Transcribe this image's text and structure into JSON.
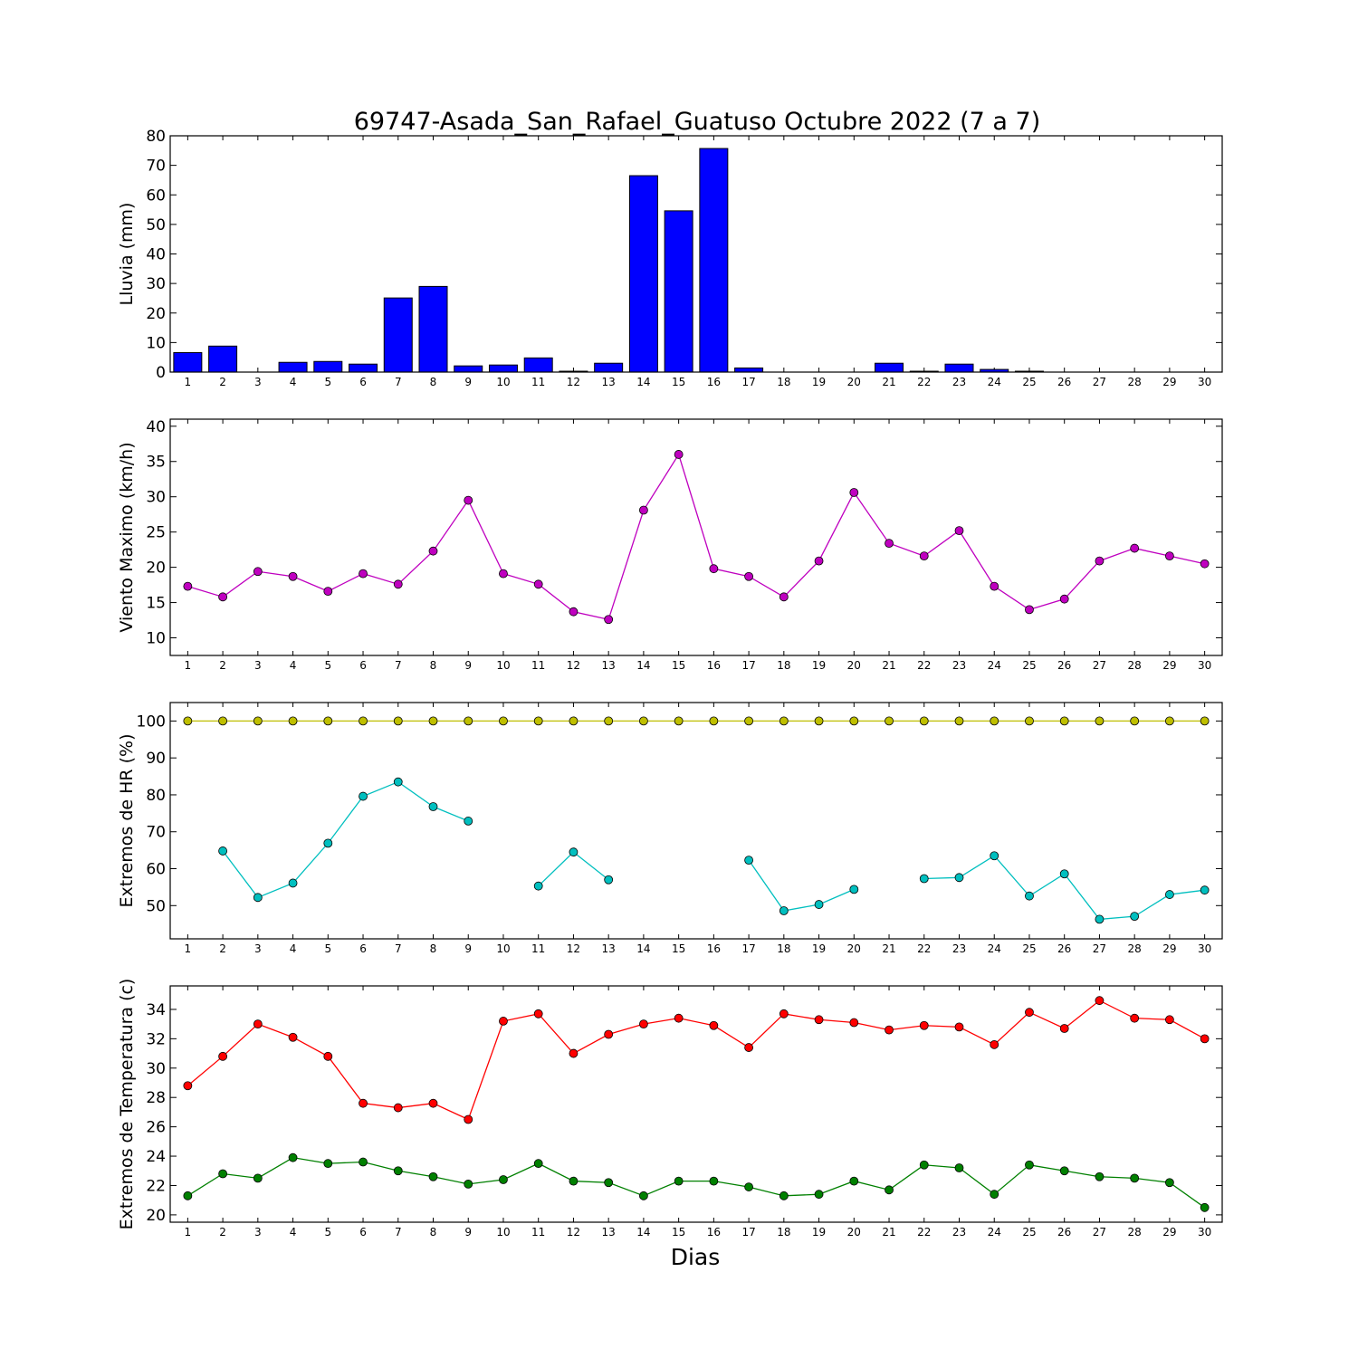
{
  "title": "69747-Asada_San_Rafael_Guatuso Octubre 2022  (7 a 7)",
  "xlabel": "Dias",
  "chart_data": [
    {
      "type": "bar",
      "ylabel": "Lluvia (mm)",
      "ylim": [
        0,
        80
      ],
      "yticks": [
        0,
        10,
        20,
        30,
        40,
        50,
        60,
        70,
        80
      ],
      "categories": [
        1,
        2,
        3,
        4,
        5,
        6,
        7,
        8,
        9,
        10,
        11,
        12,
        13,
        14,
        15,
        16,
        17,
        18,
        19,
        20,
        21,
        22,
        23,
        24,
        25,
        26,
        27,
        28,
        29,
        30
      ],
      "values": [
        6.6,
        8.8,
        0,
        3.3,
        3.6,
        2.7,
        25.1,
        29.0,
        2.1,
        2.4,
        4.8,
        0.3,
        3.0,
        66.5,
        54.6,
        75.7,
        1.4,
        0,
        0,
        0,
        3.0,
        0.3,
        2.7,
        0.9,
        0.3,
        0,
        0,
        0,
        0,
        0
      ],
      "bar_color": "#0000ff"
    },
    {
      "type": "line",
      "ylabel": "Viento Maximo (km/h)",
      "ylim": [
        7.5,
        41
      ],
      "yticks": [
        10,
        15,
        20,
        25,
        30,
        35,
        40
      ],
      "x": [
        1,
        2,
        3,
        4,
        5,
        6,
        7,
        8,
        9,
        10,
        11,
        12,
        13,
        14,
        15,
        16,
        17,
        18,
        19,
        20,
        21,
        22,
        23,
        24,
        25,
        26,
        27,
        28,
        29,
        30
      ],
      "series": [
        {
          "color": "#bf00bf",
          "values": [
            17.3,
            15.8,
            19.4,
            18.7,
            16.6,
            19.1,
            17.6,
            22.3,
            29.5,
            19.1,
            17.6,
            13.7,
            12.6,
            28.1,
            36.0,
            19.8,
            18.7,
            15.8,
            20.9,
            30.6,
            23.4,
            21.6,
            25.2,
            17.3,
            14.0,
            15.5,
            20.9,
            22.7,
            21.6,
            20.5
          ]
        }
      ]
    },
    {
      "type": "line",
      "ylabel": "Extremos de HR (%)",
      "ylim": [
        41,
        105
      ],
      "yticks": [
        50,
        60,
        70,
        80,
        90,
        100
      ],
      "x": [
        1,
        2,
        3,
        4,
        5,
        6,
        7,
        8,
        9,
        10,
        11,
        12,
        13,
        14,
        15,
        16,
        17,
        18,
        19,
        20,
        21,
        22,
        23,
        24,
        25,
        26,
        27,
        28,
        29,
        30
      ],
      "series": [
        {
          "color": "#bfbf00",
          "values": [
            100,
            100,
            100,
            100,
            100,
            100,
            100,
            100,
            100,
            100,
            100,
            100,
            100,
            100,
            100,
            100,
            100,
            100,
            100,
            100,
            100,
            100,
            100,
            100,
            100,
            100,
            100,
            100,
            100,
            100
          ]
        },
        {
          "color": "#00bfbf",
          "values": [
            null,
            64.8,
            52.2,
            56.1,
            66.9,
            79.6,
            83.5,
            76.8,
            72.9,
            null,
            55.3,
            64.5,
            57.0,
            null,
            null,
            null,
            62.3,
            48.6,
            50.3,
            54.4,
            null,
            57.3,
            57.6,
            63.5,
            52.6,
            58.6,
            46.3,
            47.1,
            53.0,
            54.2
          ]
        }
      ]
    },
    {
      "type": "line",
      "ylabel": "Extremos de Temperatura (c)",
      "ylim": [
        19.5,
        35.6
      ],
      "yticks": [
        20,
        22,
        24,
        26,
        28,
        30,
        32,
        34
      ],
      "x": [
        1,
        2,
        3,
        4,
        5,
        6,
        7,
        8,
        9,
        10,
        11,
        12,
        13,
        14,
        15,
        16,
        17,
        18,
        19,
        20,
        21,
        22,
        23,
        24,
        25,
        26,
        27,
        28,
        29,
        30
      ],
      "series": [
        {
          "color": "#ff0000",
          "values": [
            28.8,
            30.8,
            33.0,
            32.1,
            30.8,
            27.6,
            27.3,
            27.6,
            26.5,
            33.2,
            33.7,
            31.0,
            32.3,
            33.0,
            33.4,
            32.9,
            31.4,
            33.7,
            33.3,
            33.1,
            32.6,
            32.9,
            32.8,
            31.6,
            33.8,
            32.7,
            34.6,
            33.4,
            33.3,
            32.0
          ]
        },
        {
          "color": "#008000",
          "values": [
            21.3,
            22.8,
            22.5,
            23.9,
            23.5,
            23.6,
            23.0,
            22.6,
            22.1,
            22.4,
            23.5,
            22.3,
            22.2,
            21.3,
            22.3,
            22.3,
            21.9,
            21.3,
            21.4,
            22.3,
            21.7,
            23.4,
            23.2,
            21.4,
            23.4,
            23.0,
            22.6,
            22.5,
            22.2,
            20.5
          ]
        }
      ]
    }
  ]
}
